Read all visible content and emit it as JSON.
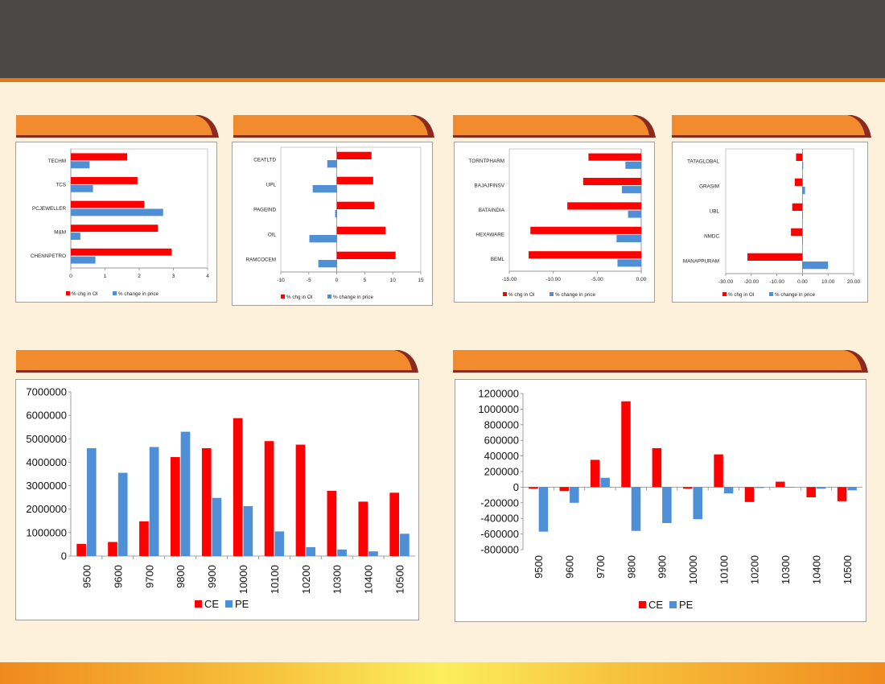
{
  "colors": {
    "header": "#4b4746",
    "accent": "#e07a1d",
    "tab": "#f28a2e",
    "tab_shadow": "#8b2a1e",
    "page_bg": "#fdf1dc",
    "ce": "#ff0000",
    "pe": "#4f8fd6"
  },
  "chart_data": [
    {
      "type": "bar",
      "orientation": "horizontal",
      "categories": [
        "TECHM",
        "TCS",
        "PCJEWELLER",
        "M&M",
        "CHENNPETRO"
      ],
      "series": [
        {
          "name": "% chg in OI",
          "values": [
            1.65,
            1.95,
            2.15,
            2.55,
            2.95
          ]
        },
        {
          "name": "% change in price",
          "values": [
            0.55,
            0.65,
            2.7,
            0.28,
            0.72
          ]
        }
      ],
      "xlim": [
        0,
        4
      ],
      "xticks": [
        "0",
        "1",
        "2",
        "3",
        "4"
      ]
    },
    {
      "type": "bar",
      "orientation": "horizontal",
      "categories": [
        "CEATLTD",
        "UPL",
        "PAGEIND",
        "OIL",
        "RAMCOCEM"
      ],
      "series": [
        {
          "name": "% chg in OI",
          "values": [
            6.2,
            6.5,
            6.7,
            8.7,
            10.5
          ]
        },
        {
          "name": "% change in price",
          "values": [
            -1.7,
            -4.3,
            -0.3,
            -4.9,
            -3.3
          ]
        }
      ],
      "xlim": [
        -10,
        15
      ],
      "xticks": [
        "-10",
        "-5",
        "0",
        "5",
        "10",
        "15"
      ]
    },
    {
      "type": "bar",
      "orientation": "horizontal",
      "categories": [
        "TORNTPHARM",
        "BAJAJFINSV",
        "BATAINDIA",
        "HEXAWARE",
        "BEML"
      ],
      "series": [
        {
          "name": "% chg in OI",
          "values": [
            -6.0,
            -6.6,
            -8.4,
            -12.6,
            -12.8
          ]
        },
        {
          "name": "% change in price",
          "values": [
            -1.8,
            -2.2,
            -1.5,
            -2.8,
            -2.7
          ]
        }
      ],
      "xlim": [
        -15,
        0
      ],
      "xticks": [
        "-15.00",
        "-10.00",
        "-5.00",
        "0.00"
      ]
    },
    {
      "type": "bar",
      "orientation": "horizontal",
      "categories": [
        "TATAGLOBAL",
        "GRASIM",
        "UBL",
        "NMDC",
        "MANAPPURAM"
      ],
      "series": [
        {
          "name": "% chg in OI",
          "values": [
            -2.5,
            -3.0,
            -4.0,
            -4.5,
            -21.5
          ]
        },
        {
          "name": "% change in price",
          "values": [
            0.3,
            1.0,
            0.2,
            0.2,
            10.0
          ]
        }
      ],
      "xlim": [
        -30,
        20
      ],
      "xticks": [
        "-30.00",
        "-20.00",
        "-10.00",
        "0.00",
        "10.00",
        "20.00"
      ]
    },
    {
      "type": "bar",
      "orientation": "vertical",
      "categories": [
        "9500",
        "9600",
        "9700",
        "9800",
        "9900",
        "10000",
        "10100",
        "10200",
        "10300",
        "10400",
        "10500"
      ],
      "series": [
        {
          "name": "CE",
          "values": [
            520000,
            600000,
            1480000,
            4220000,
            4600000,
            5880000,
            4900000,
            4750000,
            2780000,
            2320000,
            2700000
          ]
        },
        {
          "name": "PE",
          "values": [
            4600000,
            3550000,
            4650000,
            5300000,
            2480000,
            2130000,
            1050000,
            380000,
            280000,
            200000,
            950000
          ]
        }
      ],
      "ylim": [
        0,
        7000000
      ],
      "yticks": [
        "0",
        "1000000",
        "2000000",
        "3000000",
        "4000000",
        "5000000",
        "6000000",
        "7000000"
      ]
    },
    {
      "type": "bar",
      "orientation": "vertical",
      "categories": [
        "9500",
        "9600",
        "9700",
        "9800",
        "9900",
        "10000",
        "10100",
        "10200",
        "10300",
        "10400",
        "10500"
      ],
      "series": [
        {
          "name": "CE",
          "values": [
            -20000,
            -50000,
            350000,
            1100000,
            500000,
            -20000,
            420000,
            -190000,
            70000,
            -130000,
            -180000
          ]
        },
        {
          "name": "PE",
          "values": [
            -570000,
            -200000,
            120000,
            -560000,
            -460000,
            -410000,
            -80000,
            -10000,
            -5000,
            -20000,
            -40000
          ]
        }
      ],
      "ylim": [
        -800000,
        1200000
      ],
      "yticks": [
        "-800000",
        "-600000",
        "-400000",
        "-200000",
        "0",
        "200000",
        "400000",
        "600000",
        "800000",
        "1000000",
        "1200000"
      ]
    }
  ]
}
